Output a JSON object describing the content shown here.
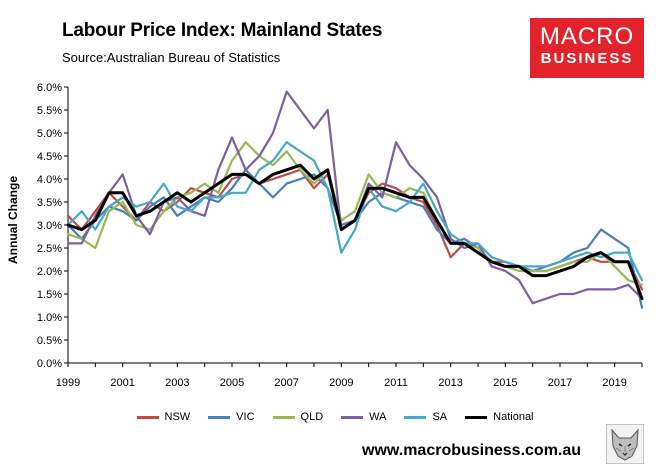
{
  "header": {
    "title": "Labour Price Index: Mainland States",
    "source": "Source:Australian Bureau of Statistics"
  },
  "logo": {
    "line1": "MACRO",
    "line2": "BUSINESS"
  },
  "footer": {
    "url": "www.macrobusiness.com.au"
  },
  "colors": {
    "NSW": "#be4b48",
    "VIC": "#4a7ebb",
    "QLD": "#98b954",
    "WA": "#7d60a0",
    "SA": "#46aac5",
    "National": "#000000",
    "logo": "#e3222b"
  },
  "chart_data": {
    "type": "line",
    "title": "Labour Price Index: Mainland States",
    "xlabel": "",
    "ylabel": "Annual Change",
    "ylim": [
      0.0,
      6.0
    ],
    "xlim": [
      1999,
      2020
    ],
    "y_ticks": [
      "0.0%",
      "0.5%",
      "1.0%",
      "1.5%",
      "2.0%",
      "2.5%",
      "3.0%",
      "3.5%",
      "4.0%",
      "4.5%",
      "5.0%",
      "5.5%",
      "6.0%"
    ],
    "x_ticks": [
      "1999",
      "2001",
      "2003",
      "2005",
      "2007",
      "2009",
      "2011",
      "2013",
      "2015",
      "2017",
      "2019"
    ],
    "legend_position": "bottom",
    "grid": false,
    "series": [
      {
        "name": "NSW",
        "x": [
          1999,
          1999.5,
          2000,
          2000.5,
          2001,
          2001.5,
          2002,
          2002.5,
          2003,
          2003.5,
          2004,
          2004.5,
          2005,
          2005.5,
          2006,
          2006.5,
          2007,
          2007.5,
          2008,
          2008.5,
          2009,
          2009.5,
          2010,
          2010.5,
          2011,
          2011.5,
          2012,
          2012.5,
          2013,
          2013.5,
          2014,
          2014.5,
          2015,
          2015.5,
          2016,
          2016.5,
          2017,
          2017.5,
          2018,
          2018.5,
          2019,
          2019.5,
          2020
        ],
        "values": [
          3.2,
          2.9,
          3.3,
          3.7,
          3.4,
          3.1,
          3.5,
          3.3,
          3.5,
          3.8,
          3.7,
          3.6,
          4.0,
          4.1,
          3.9,
          4.0,
          4.1,
          4.2,
          3.8,
          4.1,
          3.0,
          3.1,
          3.7,
          3.9,
          3.8,
          3.6,
          3.5,
          3.0,
          2.3,
          2.6,
          2.4,
          2.2,
          2.2,
          2.1,
          2.0,
          2.0,
          2.1,
          2.2,
          2.3,
          2.2,
          2.2,
          2.2,
          1.6
        ]
      },
      {
        "name": "VIC",
        "x": [
          1999,
          1999.5,
          2000,
          2000.5,
          2001,
          2001.5,
          2002,
          2002.5,
          2003,
          2003.5,
          2004,
          2004.5,
          2005,
          2005.5,
          2006,
          2006.5,
          2007,
          2007.5,
          2008,
          2008.5,
          2009,
          2009.5,
          2010,
          2010.5,
          2011,
          2011.5,
          2012,
          2012.5,
          2013,
          2013.5,
          2014,
          2014.5,
          2015,
          2015.5,
          2016,
          2016.5,
          2017,
          2017.5,
          2018,
          2018.5,
          2019,
          2019.5,
          2020
        ],
        "values": [
          3.0,
          2.7,
          3.1,
          3.4,
          3.3,
          3.1,
          3.4,
          3.6,
          3.2,
          3.4,
          3.6,
          3.5,
          3.8,
          4.2,
          3.9,
          3.6,
          3.9,
          4.0,
          4.1,
          3.8,
          3.0,
          3.1,
          3.5,
          3.7,
          3.6,
          3.5,
          3.4,
          2.9,
          2.6,
          2.7,
          2.5,
          2.2,
          2.1,
          2.1,
          2.0,
          2.1,
          2.2,
          2.4,
          2.5,
          2.9,
          2.7,
          2.5,
          1.2
        ]
      },
      {
        "name": "QLD",
        "x": [
          1999,
          1999.5,
          2000,
          2000.5,
          2001,
          2001.5,
          2002,
          2002.5,
          2003,
          2003.5,
          2004,
          2004.5,
          2005,
          2005.5,
          2006,
          2006.5,
          2007,
          2007.5,
          2008,
          2008.5,
          2009,
          2009.5,
          2010,
          2010.5,
          2011,
          2011.5,
          2012,
          2012.5,
          2013,
          2013.5,
          2014,
          2014.5,
          2015,
          2015.5,
          2016,
          2016.5,
          2017,
          2017.5,
          2018,
          2018.5,
          2019,
          2019.5,
          2020
        ],
        "values": [
          2.8,
          2.7,
          2.5,
          3.3,
          3.5,
          3.0,
          2.9,
          3.3,
          3.6,
          3.7,
          3.9,
          3.7,
          4.4,
          4.8,
          4.5,
          4.3,
          4.6,
          4.2,
          3.9,
          4.2,
          3.1,
          3.3,
          4.1,
          3.7,
          3.6,
          3.8,
          3.7,
          3.1,
          2.6,
          2.6,
          2.5,
          2.2,
          2.1,
          2.0,
          2.0,
          2.0,
          2.1,
          2.2,
          2.2,
          2.4,
          2.1,
          1.8,
          1.7
        ]
      },
      {
        "name": "WA",
        "x": [
          1999,
          1999.5,
          2000,
          2000.5,
          2001,
          2001.5,
          2002,
          2002.5,
          2003,
          2003.5,
          2004,
          2004.5,
          2005,
          2005.5,
          2006,
          2006.5,
          2007,
          2007.5,
          2008,
          2008.5,
          2009,
          2009.5,
          2010,
          2010.5,
          2011,
          2011.5,
          2012,
          2012.5,
          2013,
          2013.5,
          2014,
          2014.5,
          2015,
          2015.5,
          2016,
          2016.5,
          2017,
          2017.5,
          2018,
          2018.5,
          2019,
          2019.5,
          2020
        ],
        "values": [
          2.6,
          2.6,
          3.2,
          3.7,
          4.1,
          3.2,
          2.8,
          3.5,
          3.6,
          3.3,
          3.2,
          4.2,
          4.9,
          4.2,
          4.5,
          5.0,
          5.9,
          5.5,
          5.1,
          5.5,
          2.9,
          3.1,
          3.9,
          3.6,
          4.8,
          4.3,
          4.0,
          3.6,
          2.7,
          2.5,
          2.6,
          2.1,
          2.0,
          1.8,
          1.3,
          1.4,
          1.5,
          1.5,
          1.6,
          1.6,
          1.6,
          1.7,
          1.4
        ]
      },
      {
        "name": "SA",
        "x": [
          1999,
          1999.5,
          2000,
          2000.5,
          2001,
          2001.5,
          2002,
          2002.5,
          2003,
          2003.5,
          2004,
          2004.5,
          2005,
          2005.5,
          2006,
          2006.5,
          2007,
          2007.5,
          2008,
          2008.5,
          2009,
          2009.5,
          2010,
          2010.5,
          2011,
          2011.5,
          2012,
          2012.5,
          2013,
          2013.5,
          2014,
          2014.5,
          2015,
          2015.5,
          2016,
          2016.5,
          2017,
          2017.5,
          2018,
          2018.5,
          2019,
          2019.5,
          2020
        ],
        "values": [
          3.0,
          3.3,
          2.9,
          3.4,
          3.6,
          3.4,
          3.5,
          3.9,
          3.4,
          3.3,
          3.6,
          3.6,
          3.7,
          3.7,
          4.2,
          4.4,
          4.8,
          4.6,
          4.4,
          3.8,
          2.4,
          2.9,
          3.8,
          3.4,
          3.3,
          3.5,
          3.9,
          3.3,
          2.8,
          2.6,
          2.6,
          2.3,
          2.2,
          2.1,
          2.1,
          2.1,
          2.2,
          2.3,
          2.4,
          2.3,
          2.4,
          2.4,
          1.8
        ]
      },
      {
        "name": "National",
        "x": [
          1999,
          1999.5,
          2000,
          2000.5,
          2001,
          2001.5,
          2002,
          2002.5,
          2003,
          2003.5,
          2004,
          2004.5,
          2005,
          2005.5,
          2006,
          2006.5,
          2007,
          2007.5,
          2008,
          2008.5,
          2009,
          2009.5,
          2010,
          2010.5,
          2011,
          2011.5,
          2012,
          2012.5,
          2013,
          2013.5,
          2014,
          2014.5,
          2015,
          2015.5,
          2016,
          2016.5,
          2017,
          2017.5,
          2018,
          2018.5,
          2019,
          2019.5,
          2020
        ],
        "values": [
          3.0,
          2.9,
          3.1,
          3.7,
          3.7,
          3.2,
          3.3,
          3.5,
          3.7,
          3.5,
          3.7,
          3.9,
          4.1,
          4.1,
          3.9,
          4.1,
          4.2,
          4.3,
          4.0,
          4.2,
          2.9,
          3.1,
          3.8,
          3.8,
          3.7,
          3.6,
          3.6,
          3.1,
          2.6,
          2.6,
          2.4,
          2.2,
          2.1,
          2.1,
          1.9,
          1.9,
          2.0,
          2.1,
          2.3,
          2.4,
          2.2,
          2.2,
          1.4
        ]
      }
    ]
  }
}
